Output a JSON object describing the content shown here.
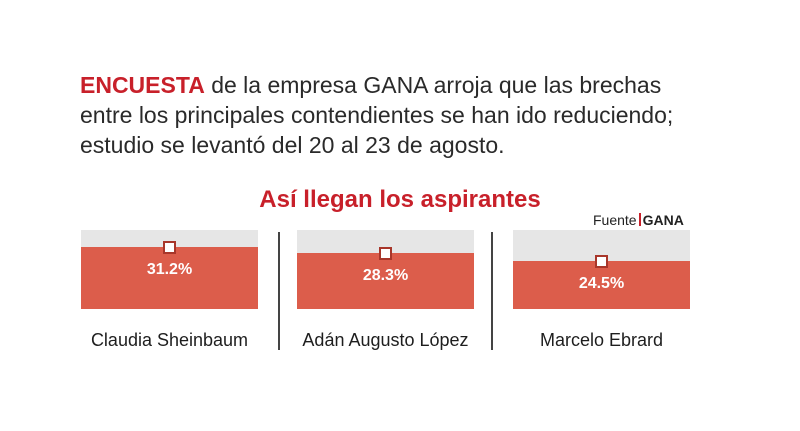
{
  "intro": {
    "lead": "ENCUESTA",
    "line1": " de la empresa GANA arroja que las brechas",
    "line2": "entre los principales contendientes se han ido reduciendo;",
    "line3": "estudio se levantó del 20 al 23 de agosto."
  },
  "source": {
    "label": "Fuente",
    "name": "GANA"
  },
  "colors": {
    "accent": "#c8202a",
    "bar": "#dc5d4b",
    "track": "#e6e6e6"
  },
  "chart_data": {
    "type": "bar",
    "title": "Así llegan los aspirantes",
    "categories": [
      "Claudia Sheinbaum",
      "Adán Augusto López",
      "Marcelo Ebrard"
    ],
    "values": [
      31.2,
      28.3,
      24.5
    ],
    "value_labels": [
      "31.2%",
      "28.3%",
      "24.5%"
    ],
    "unit": "%",
    "ylim": [
      0,
      40
    ],
    "grid": false,
    "legend": "none"
  }
}
